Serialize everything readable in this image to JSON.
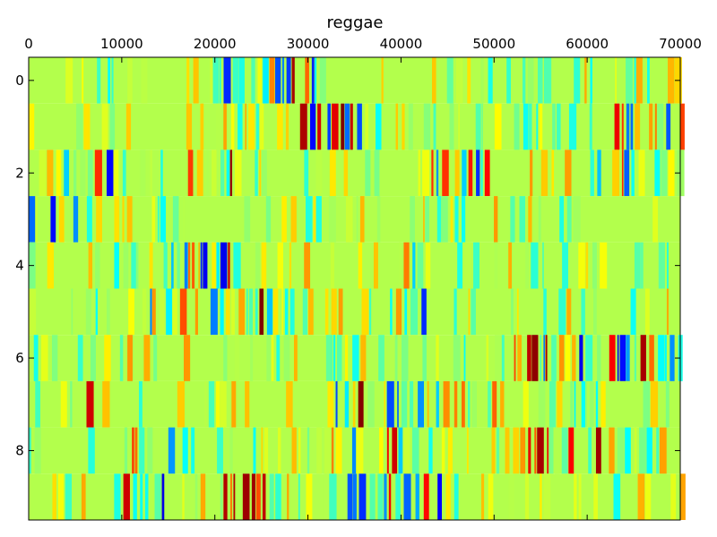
{
  "chart_data": {
    "type": "heatmap",
    "title": "reggae",
    "xlabel": "",
    "ylabel": "",
    "colormap": "jet",
    "xlim": [
      0,
      70000
    ],
    "ylim": [
      9.5,
      -0.5
    ],
    "x_ticks": [
      0,
      10000,
      20000,
      30000,
      40000,
      50000,
      60000,
      70000
    ],
    "x_tick_labels": [
      "0",
      "10000",
      "20000",
      "30000",
      "40000",
      "50000",
      "60000",
      "70000"
    ],
    "y_ticks": [
      0,
      2,
      4,
      6,
      8
    ],
    "y_tick_labels": [
      "0",
      "2",
      "4",
      "6",
      "8"
    ],
    "rows": [
      0,
      1,
      2,
      3,
      4,
      5,
      6,
      7,
      8,
      9
    ],
    "row_activity": [
      {
        "row": 0,
        "baseline": 0.55,
        "active_ranges": [
          [
            19000,
            21000
          ],
          [
            24000,
            32000
          ]
        ]
      },
      {
        "row": 1,
        "baseline": 0.55,
        "active_ranges": [
          [
            29000,
            36000
          ],
          [
            62000,
            70000
          ]
        ]
      },
      {
        "row": 2,
        "baseline": 0.55,
        "active_ranges": [
          [
            2000,
            9000
          ],
          [
            16000,
            22000
          ],
          [
            42000,
            50000
          ],
          [
            60000,
            66000
          ]
        ]
      },
      {
        "row": 3,
        "baseline": 0.55,
        "active_ranges": [
          [
            0,
            1000
          ],
          [
            2000,
            6000
          ]
        ]
      },
      {
        "row": 4,
        "baseline": 0.55,
        "active_ranges": [
          [
            15000,
            22000
          ],
          [
            40000,
            43000
          ]
        ]
      },
      {
        "row": 5,
        "baseline": 0.55,
        "active_ranges": [
          [
            13000,
            26000
          ],
          [
            41000,
            43000
          ]
        ]
      },
      {
        "row": 6,
        "baseline": 0.55,
        "active_ranges": [
          [
            52000,
            60000
          ],
          [
            62000,
            70000
          ]
        ]
      },
      {
        "row": 7,
        "baseline": 0.55,
        "active_ranges": [
          [
            5000,
            8000
          ],
          [
            11000,
            12000
          ],
          [
            32000,
            50000
          ]
        ]
      },
      {
        "row": 8,
        "baseline": 0.55,
        "active_ranges": [
          [
            10000,
            19000
          ],
          [
            32000,
            41000
          ],
          [
            53000,
            61000
          ]
        ]
      },
      {
        "row": 9,
        "baseline": 0.55,
        "active_ranges": [
          [
            9000,
            15000
          ],
          [
            20000,
            26000
          ],
          [
            34000,
            46000
          ]
        ]
      }
    ]
  }
}
